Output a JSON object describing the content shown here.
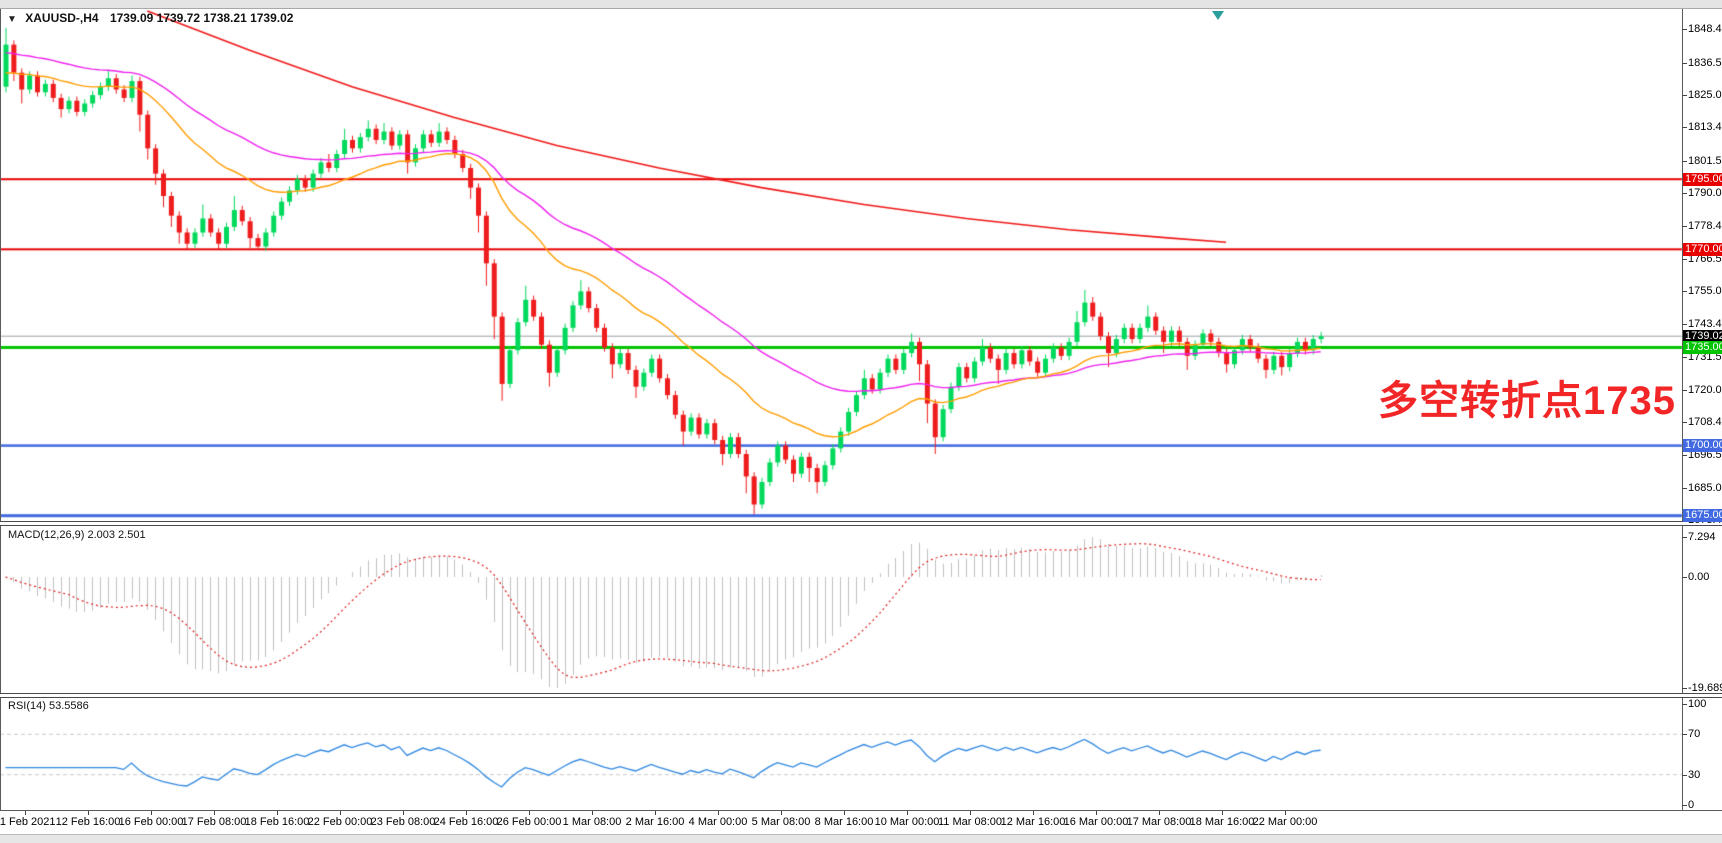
{
  "window": {
    "title_symbol": "XAUUSD-,H4",
    "title_ohlc": "1739.09 1739.72 1738.21 1739.02"
  },
  "annotation": {
    "text": "多空转折点1735",
    "color": "#f22626"
  },
  "colors": {
    "up": "#00d95c",
    "down": "#ee1c1c",
    "resistance_red": "#e80000",
    "support_green": "#00c400",
    "support_blue": "#4169e1",
    "ma_red": "#f01818",
    "ma_magenta": "#ee22ee",
    "ma_orange": "#ff9d00",
    "macd_hist": "#c0c0c0",
    "macd_signal": "#dd2222",
    "rsi_line": "#2f87e0",
    "current_price_line": "#9aa0a6"
  },
  "price_axis": {
    "ticks": [
      "1848.45",
      "1836.55",
      "1825.00",
      "1813.45",
      "1801.55",
      "1790.00",
      "1778.45",
      "1766.55",
      "1755.00",
      "1743.45",
      "1731.55",
      "1720.00",
      "1708.45",
      "1696.55",
      "1685.00",
      "1673.45"
    ]
  },
  "levels": [
    {
      "label": "1795.00",
      "color": "#e80000",
      "width": 2,
      "label_bg": "#e80000"
    },
    {
      "label": "1770.00",
      "color": "#e80000",
      "width": 2,
      "label_bg": "#e80000"
    },
    {
      "label": "1739.02",
      "color": "#9aa0a6",
      "width": 1,
      "label_bg": "#000000"
    },
    {
      "label": "1735.00",
      "color": "#00c400",
      "width": 3,
      "label_bg": "#00c400"
    },
    {
      "label": "1700.00",
      "color": "#4169e1",
      "width": 2.5,
      "label_bg": "#4169e1"
    },
    {
      "label": "1675.00",
      "color": "#4169e1",
      "width": 3,
      "label_bg": "#4169e1"
    }
  ],
  "time_axis": {
    "labels": [
      "11 Feb 2021",
      "12 Feb 16:00",
      "16 Feb 00:00",
      "17 Feb 08:00",
      "18 Feb 16:00",
      "22 Feb 00:00",
      "23 Feb 08:00",
      "24 Feb 16:00",
      "26 Feb 00:00",
      "1 Mar 08:00",
      "2 Mar 16:00",
      "4 Mar 00:00",
      "5 Mar 08:00",
      "8 Mar 16:00",
      "10 Mar 00:00",
      "11 Mar 08:00",
      "12 Mar 16:00",
      "16 Mar 00:00",
      "17 Mar 08:00",
      "18 Mar 16:00",
      "22 Mar 00:00"
    ]
  },
  "macd_panel": {
    "label": "MACD(12,26,9) 2.003 2.501",
    "axis_max": "7.294",
    "axis_zero": "0.00",
    "axis_min": "-19.689"
  },
  "rsi_panel": {
    "label": "RSI(14) 53.5586",
    "axis_labels": [
      "100",
      "70",
      "30",
      "0"
    ],
    "dashed_levels": [
      70,
      30
    ]
  },
  "chart_data": {
    "type": "candlestick",
    "symbol": "XAUUSD-",
    "timeframe": "H4",
    "title": "XAUUSD-,H4 1739.09 1739.72 1738.21 1739.02",
    "current_bar": {
      "open": 1739.09,
      "high": 1739.72,
      "low": 1738.21,
      "close": 1739.02
    },
    "visible_price_range": [
      1673.45,
      1856.0
    ],
    "horizontal_levels": [
      1795.0,
      1770.0,
      1735.0,
      1700.0,
      1675.0
    ],
    "current_price": 1739.02,
    "candles_ohlc": [
      [
        1828,
        1849,
        1826,
        1843
      ],
      [
        1843,
        1844.5,
        1830,
        1833
      ],
      [
        1833,
        1834.5,
        1822,
        1827
      ],
      [
        1827,
        1833.5,
        1825.5,
        1832
      ],
      [
        1832,
        1833.5,
        1824.5,
        1826
      ],
      [
        1826,
        1830.5,
        1824.5,
        1829
      ],
      [
        1829,
        1830.5,
        1822.5,
        1824
      ],
      [
        1824,
        1825.5,
        1817,
        1820
      ],
      [
        1820,
        1824.5,
        1818.5,
        1823
      ],
      [
        1823,
        1824.5,
        1817.5,
        1819
      ],
      [
        1819,
        1823.5,
        1817.5,
        1822
      ],
      [
        1822,
        1826.5,
        1820.5,
        1825
      ],
      [
        1825,
        1829.5,
        1823.5,
        1828
      ],
      [
        1828,
        1834,
        1826.5,
        1831
      ],
      [
        1831,
        1832.5,
        1825.5,
        1827
      ],
      [
        1827,
        1828.5,
        1822.5,
        1824
      ],
      [
        1824,
        1832,
        1822.5,
        1830
      ],
      [
        1830,
        1831.5,
        1812,
        1818
      ],
      [
        1818,
        1819.5,
        1802,
        1806
      ],
      [
        1806,
        1807.5,
        1793,
        1797
      ],
      [
        1797,
        1798.5,
        1785,
        1789
      ],
      [
        1789,
        1790.5,
        1778,
        1782
      ],
      [
        1782,
        1783.5,
        1772,
        1776
      ],
      [
        1776,
        1777.5,
        1770,
        1772
      ],
      [
        1772,
        1777.5,
        1770.5,
        1776
      ],
      [
        1776,
        1786,
        1774.5,
        1781
      ],
      [
        1781,
        1782.5,
        1774.5,
        1776
      ],
      [
        1776,
        1777.5,
        1770,
        1772
      ],
      [
        1772,
        1779.5,
        1770.5,
        1778
      ],
      [
        1778,
        1789,
        1776.5,
        1784
      ],
      [
        1784,
        1785.5,
        1778.5,
        1780
      ],
      [
        1780,
        1781.5,
        1770.5,
        1774
      ],
      [
        1774,
        1775.5,
        1770,
        1771
      ],
      [
        1771,
        1777.5,
        1769.5,
        1776
      ],
      [
        1776,
        1783.5,
        1774.5,
        1782
      ],
      [
        1782,
        1788.5,
        1780.5,
        1787
      ],
      [
        1787,
        1792.5,
        1785.5,
        1791
      ],
      [
        1791,
        1796.5,
        1789.5,
        1795
      ],
      [
        1795,
        1796.5,
        1790.5,
        1792
      ],
      [
        1792,
        1798.5,
        1790.5,
        1797
      ],
      [
        1797,
        1802.5,
        1795.5,
        1801
      ],
      [
        1801,
        1804,
        1797.5,
        1799
      ],
      [
        1799,
        1805.5,
        1797.5,
        1804
      ],
      [
        1804,
        1813,
        1802.5,
        1809
      ],
      [
        1809,
        1810.5,
        1804.5,
        1806
      ],
      [
        1806,
        1811.5,
        1804.5,
        1810
      ],
      [
        1810,
        1816,
        1808.5,
        1813
      ],
      [
        1813,
        1814.5,
        1807.5,
        1809
      ],
      [
        1809,
        1815,
        1807.5,
        1812
      ],
      [
        1812,
        1813.5,
        1805.5,
        1807
      ],
      [
        1807,
        1812.5,
        1805.5,
        1811
      ],
      [
        1811,
        1812.5,
        1797,
        1801
      ],
      [
        1801,
        1807.5,
        1799.5,
        1806
      ],
      [
        1806,
        1812.5,
        1804.5,
        1811
      ],
      [
        1811,
        1812.5,
        1806.5,
        1808
      ],
      [
        1808,
        1815,
        1806.5,
        1812
      ],
      [
        1812,
        1813.5,
        1807.5,
        1809
      ],
      [
        1809,
        1810.5,
        1802.5,
        1804
      ],
      [
        1804,
        1805.5,
        1797.5,
        1799
      ],
      [
        1799,
        1800.5,
        1788,
        1792
      ],
      [
        1792,
        1793.5,
        1776,
        1782
      ],
      [
        1782,
        1783.5,
        1757,
        1765
      ],
      [
        1765,
        1766.5,
        1738,
        1746
      ],
      [
        1746,
        1747.5,
        1716,
        1722
      ],
      [
        1722,
        1735.5,
        1720.5,
        1734
      ],
      [
        1734,
        1745.5,
        1732.5,
        1744
      ],
      [
        1744,
        1757,
        1742.5,
        1752
      ],
      [
        1752,
        1753.5,
        1744.5,
        1746
      ],
      [
        1746,
        1747.5,
        1734.5,
        1736
      ],
      [
        1736,
        1737.5,
        1721,
        1726
      ],
      [
        1726,
        1735.5,
        1724.5,
        1734
      ],
      [
        1734,
        1743.5,
        1732.5,
        1742
      ],
      [
        1742,
        1751.5,
        1740.5,
        1750
      ],
      [
        1750,
        1759,
        1748.5,
        1755
      ],
      [
        1755,
        1756.5,
        1747.5,
        1749
      ],
      [
        1749,
        1750.5,
        1740.5,
        1742
      ],
      [
        1742,
        1743.5,
        1733.5,
        1735
      ],
      [
        1735,
        1736.5,
        1724,
        1729
      ],
      [
        1729,
        1734.5,
        1727.5,
        1733
      ],
      [
        1733,
        1734.5,
        1725.5,
        1727
      ],
      [
        1727,
        1728.5,
        1717,
        1721
      ],
      [
        1721,
        1727.5,
        1719.5,
        1726
      ],
      [
        1726,
        1732.5,
        1724.5,
        1731
      ],
      [
        1731,
        1732.5,
        1722.5,
        1724
      ],
      [
        1724,
        1725.5,
        1716.5,
        1718
      ],
      [
        1718,
        1719.5,
        1709.5,
        1711
      ],
      [
        1711,
        1712.5,
        1700,
        1705
      ],
      [
        1705,
        1711.5,
        1703.5,
        1710
      ],
      [
        1710,
        1711.5,
        1702.5,
        1704
      ],
      [
        1704,
        1709.5,
        1702.5,
        1708
      ],
      [
        1708,
        1709.5,
        1700.5,
        1702
      ],
      [
        1702,
        1703.5,
        1693,
        1697
      ],
      [
        1697,
        1704.5,
        1695.5,
        1703
      ],
      [
        1703,
        1704.5,
        1695.5,
        1697
      ],
      [
        1697,
        1698.5,
        1683,
        1689
      ],
      [
        1689,
        1690.5,
        1675.5,
        1679
      ],
      [
        1679,
        1688.5,
        1677.5,
        1687
      ],
      [
        1687,
        1695.5,
        1685.5,
        1694
      ],
      [
        1694,
        1701.5,
        1692.5,
        1700
      ],
      [
        1700,
        1701.5,
        1693.5,
        1695
      ],
      [
        1695,
        1696.5,
        1687,
        1690
      ],
      [
        1690,
        1697.5,
        1688.5,
        1696
      ],
      [
        1696,
        1697.5,
        1687,
        1692
      ],
      [
        1692,
        1693.5,
        1683,
        1687
      ],
      [
        1687,
        1694.5,
        1685.5,
        1693
      ],
      [
        1693,
        1700.5,
        1691.5,
        1699
      ],
      [
        1699,
        1706.5,
        1697.5,
        1705
      ],
      [
        1705,
        1713.5,
        1703.5,
        1712
      ],
      [
        1712,
        1719.5,
        1710.5,
        1718
      ],
      [
        1718,
        1727,
        1716.5,
        1724
      ],
      [
        1724,
        1725.5,
        1718.5,
        1720
      ],
      [
        1720,
        1727.5,
        1718.5,
        1726
      ],
      [
        1726,
        1732.5,
        1724.5,
        1731
      ],
      [
        1731,
        1732.5,
        1725.5,
        1727
      ],
      [
        1727,
        1734.5,
        1725.5,
        1733
      ],
      [
        1733,
        1740,
        1731.5,
        1737
      ],
      [
        1737,
        1738.5,
        1723,
        1729
      ],
      [
        1729,
        1730.5,
        1708,
        1715
      ],
      [
        1715,
        1716.5,
        1697,
        1703
      ],
      [
        1703,
        1714.5,
        1701.5,
        1713
      ],
      [
        1713,
        1722.5,
        1711.5,
        1721
      ],
      [
        1721,
        1729.5,
        1719.5,
        1728
      ],
      [
        1728,
        1729.5,
        1722.5,
        1724
      ],
      [
        1724,
        1731.5,
        1722.5,
        1730
      ],
      [
        1730,
        1738,
        1728.5,
        1735
      ],
      [
        1735,
        1736.5,
        1729.5,
        1731
      ],
      [
        1731,
        1732.5,
        1722,
        1727
      ],
      [
        1727,
        1734.5,
        1725.5,
        1733
      ],
      [
        1733,
        1734.5,
        1727.5,
        1729
      ],
      [
        1729,
        1735.5,
        1727.5,
        1734
      ],
      [
        1734,
        1735.5,
        1728.5,
        1730
      ],
      [
        1730,
        1731.5,
        1724.5,
        1726
      ],
      [
        1726,
        1732.5,
        1724.5,
        1731
      ],
      [
        1731,
        1736.5,
        1729.5,
        1735
      ],
      [
        1735,
        1736.5,
        1730.5,
        1732
      ],
      [
        1732,
        1738.5,
        1730.5,
        1737
      ],
      [
        1737,
        1748,
        1735.5,
        1744
      ],
      [
        1744,
        1755.5,
        1742.5,
        1751
      ],
      [
        1751,
        1753,
        1744.5,
        1746
      ],
      [
        1746,
        1747.5,
        1737.5,
        1739
      ],
      [
        1739,
        1740.5,
        1728,
        1733
      ],
      [
        1733,
        1739.5,
        1731.5,
        1738
      ],
      [
        1738,
        1743.5,
        1736.5,
        1742
      ],
      [
        1742,
        1743.5,
        1736.5,
        1738
      ],
      [
        1738,
        1743.5,
        1736.5,
        1742
      ],
      [
        1742,
        1750,
        1740.5,
        1746
      ],
      [
        1746,
        1747.5,
        1739.5,
        1741
      ],
      [
        1741,
        1742.5,
        1733,
        1737
      ],
      [
        1737,
        1742.5,
        1735.5,
        1741
      ],
      [
        1741,
        1742.5,
        1735.5,
        1737
      ],
      [
        1737,
        1738.5,
        1727,
        1732
      ],
      [
        1732,
        1737.5,
        1730.5,
        1736
      ],
      [
        1736,
        1741.5,
        1734.5,
        1740
      ],
      [
        1740,
        1741.5,
        1735.5,
        1737
      ],
      [
        1737,
        1738.5,
        1731.5,
        1733
      ],
      [
        1733,
        1734.5,
        1726,
        1729
      ],
      [
        1729,
        1735.5,
        1727.5,
        1734
      ],
      [
        1734,
        1739.5,
        1732.5,
        1738
      ],
      [
        1738,
        1739.5,
        1733.5,
        1735
      ],
      [
        1735,
        1736.5,
        1729.5,
        1731
      ],
      [
        1731,
        1732.5,
        1724,
        1727
      ],
      [
        1727,
        1733.5,
        1725.5,
        1732
      ],
      [
        1732,
        1733.5,
        1725,
        1728
      ],
      [
        1728,
        1734.5,
        1726.5,
        1733
      ],
      [
        1733,
        1738.5,
        1731.5,
        1737
      ],
      [
        1737,
        1738.5,
        1732.5,
        1734
      ],
      [
        1734,
        1739.5,
        1732.5,
        1738
      ],
      [
        1738,
        1740.5,
        1736.5,
        1739
      ]
    ],
    "moving_averages": {
      "orange_ema_period": 24,
      "magenta_ema_period": 45,
      "red_ma_points": [
        [
          18,
          1855
        ],
        [
          31,
          1841
        ],
        [
          44,
          1828
        ],
        [
          57,
          1817
        ],
        [
          70,
          1807
        ],
        [
          83,
          1799
        ],
        [
          96,
          1792
        ],
        [
          109,
          1786
        ],
        [
          122,
          1781
        ],
        [
          135,
          1777
        ],
        [
          148,
          1774
        ],
        [
          155,
          1772.5
        ]
      ]
    },
    "indicators": {
      "macd": {
        "fast": 12,
        "slow": 26,
        "signal": 9,
        "current_macd": 2.003,
        "current_signal": 2.501,
        "axis_range": [
          -19.689,
          7.294
        ]
      },
      "rsi": {
        "period": 14,
        "current": 53.5586,
        "levels": [
          70,
          30
        ],
        "axis_range": [
          0,
          100
        ]
      }
    }
  }
}
